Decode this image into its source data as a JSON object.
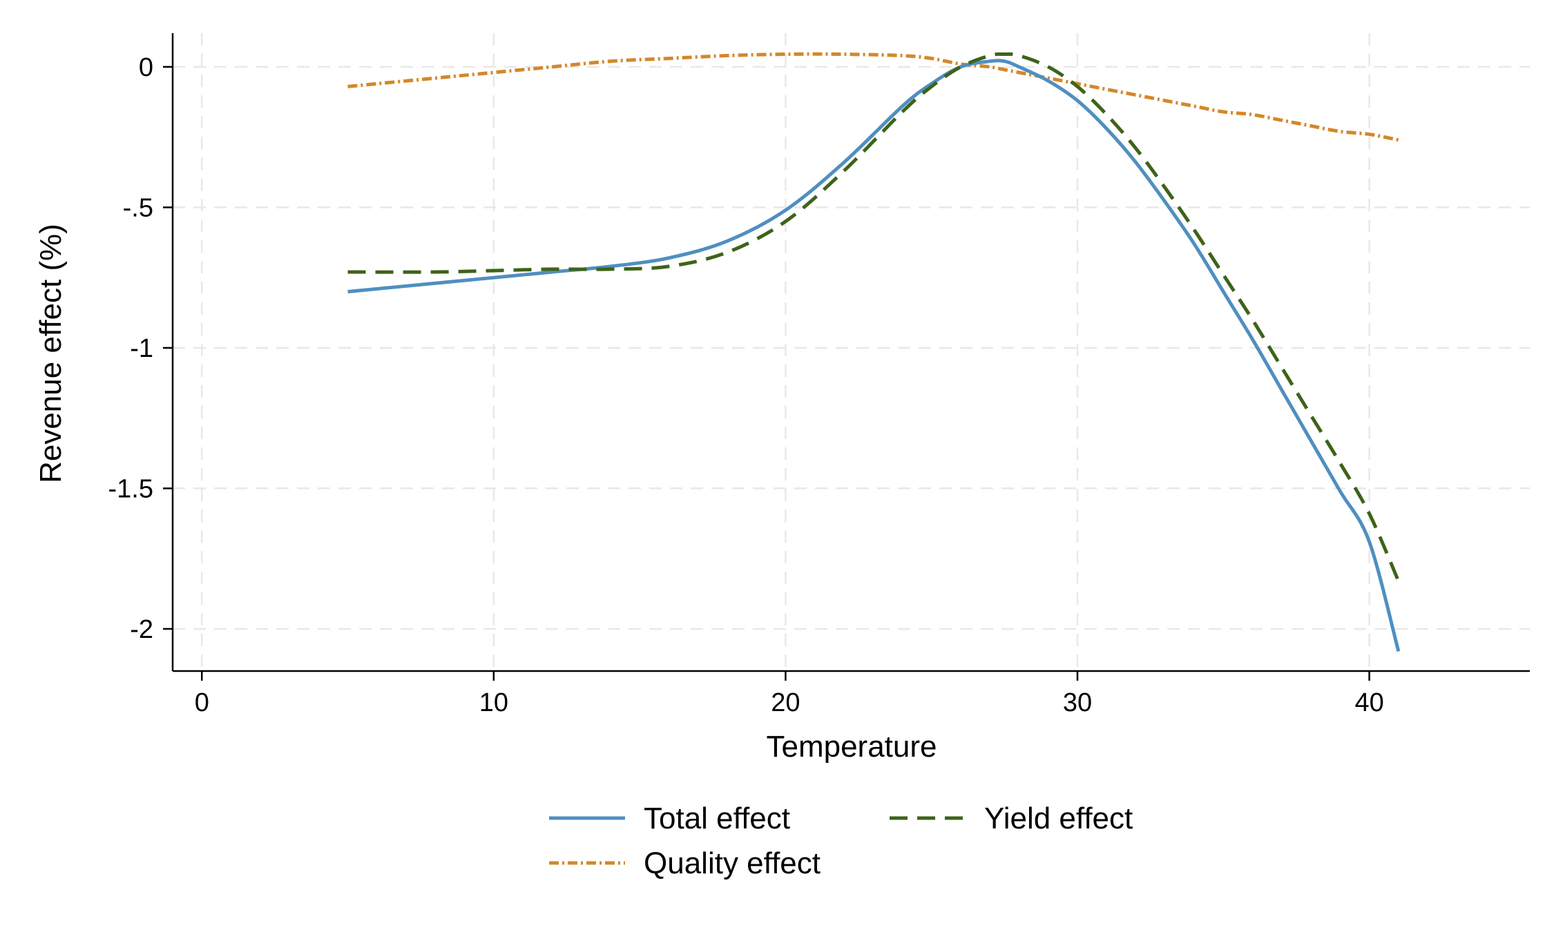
{
  "chart_data": {
    "type": "line",
    "title": "",
    "xlabel": "Temperature",
    "ylabel": "Revenue effect (%)",
    "xlim": [
      -1,
      45.5
    ],
    "ylim": [
      -2.15,
      0.12
    ],
    "xticks": [
      0,
      10,
      20,
      30,
      40
    ],
    "xtick_labels": [
      "0",
      "10",
      "20",
      "30",
      "40"
    ],
    "yticks": [
      0,
      -0.5,
      -1,
      -1.5,
      -2
    ],
    "ytick_labels": [
      "0",
      "-.5",
      "-1",
      "-1.5",
      "-2"
    ],
    "grid": true,
    "legend_position": "bottom",
    "x": [
      5,
      8,
      10,
      12,
      14,
      16,
      18,
      20,
      22,
      24,
      25,
      26,
      27,
      27.5,
      28,
      29,
      30,
      31,
      32,
      33,
      34,
      35,
      36,
      37,
      38,
      39,
      40,
      41
    ],
    "series": [
      {
        "name": "Total effect",
        "color": "#4f8fc0",
        "style": "solid",
        "values": [
          -0.8,
          -0.77,
          -0.75,
          -0.73,
          -0.71,
          -0.68,
          -0.62,
          -0.51,
          -0.34,
          -0.14,
          -0.06,
          0.0,
          0.02,
          0.02,
          0.0,
          -0.05,
          -0.12,
          -0.22,
          -0.34,
          -0.48,
          -0.63,
          -0.8,
          -0.97,
          -1.15,
          -1.33,
          -1.51,
          -1.69,
          -2.08
        ]
      },
      {
        "name": "Yield effect",
        "color": "#3e6319",
        "style": "dashed",
        "values": [
          -0.73,
          -0.73,
          -0.725,
          -0.72,
          -0.72,
          -0.71,
          -0.66,
          -0.55,
          -0.37,
          -0.16,
          -0.07,
          0.0,
          0.04,
          0.045,
          0.04,
          0.0,
          -0.07,
          -0.17,
          -0.29,
          -0.43,
          -0.58,
          -0.74,
          -0.9,
          -1.07,
          -1.24,
          -1.41,
          -1.59,
          -1.83
        ]
      },
      {
        "name": "Quality effect",
        "color": "#d3882a",
        "style": "dashdot",
        "values": [
          -0.07,
          -0.04,
          -0.02,
          0.0,
          0.02,
          0.03,
          0.04,
          0.045,
          0.045,
          0.04,
          0.03,
          0.01,
          0.0,
          -0.01,
          -0.02,
          -0.04,
          -0.06,
          -0.08,
          -0.1,
          -0.12,
          -0.14,
          -0.16,
          -0.17,
          -0.19,
          -0.21,
          -0.23,
          -0.24,
          -0.26
        ]
      }
    ]
  },
  "legend": {
    "items": [
      "Total effect",
      "Yield effect",
      "Quality effect"
    ]
  }
}
